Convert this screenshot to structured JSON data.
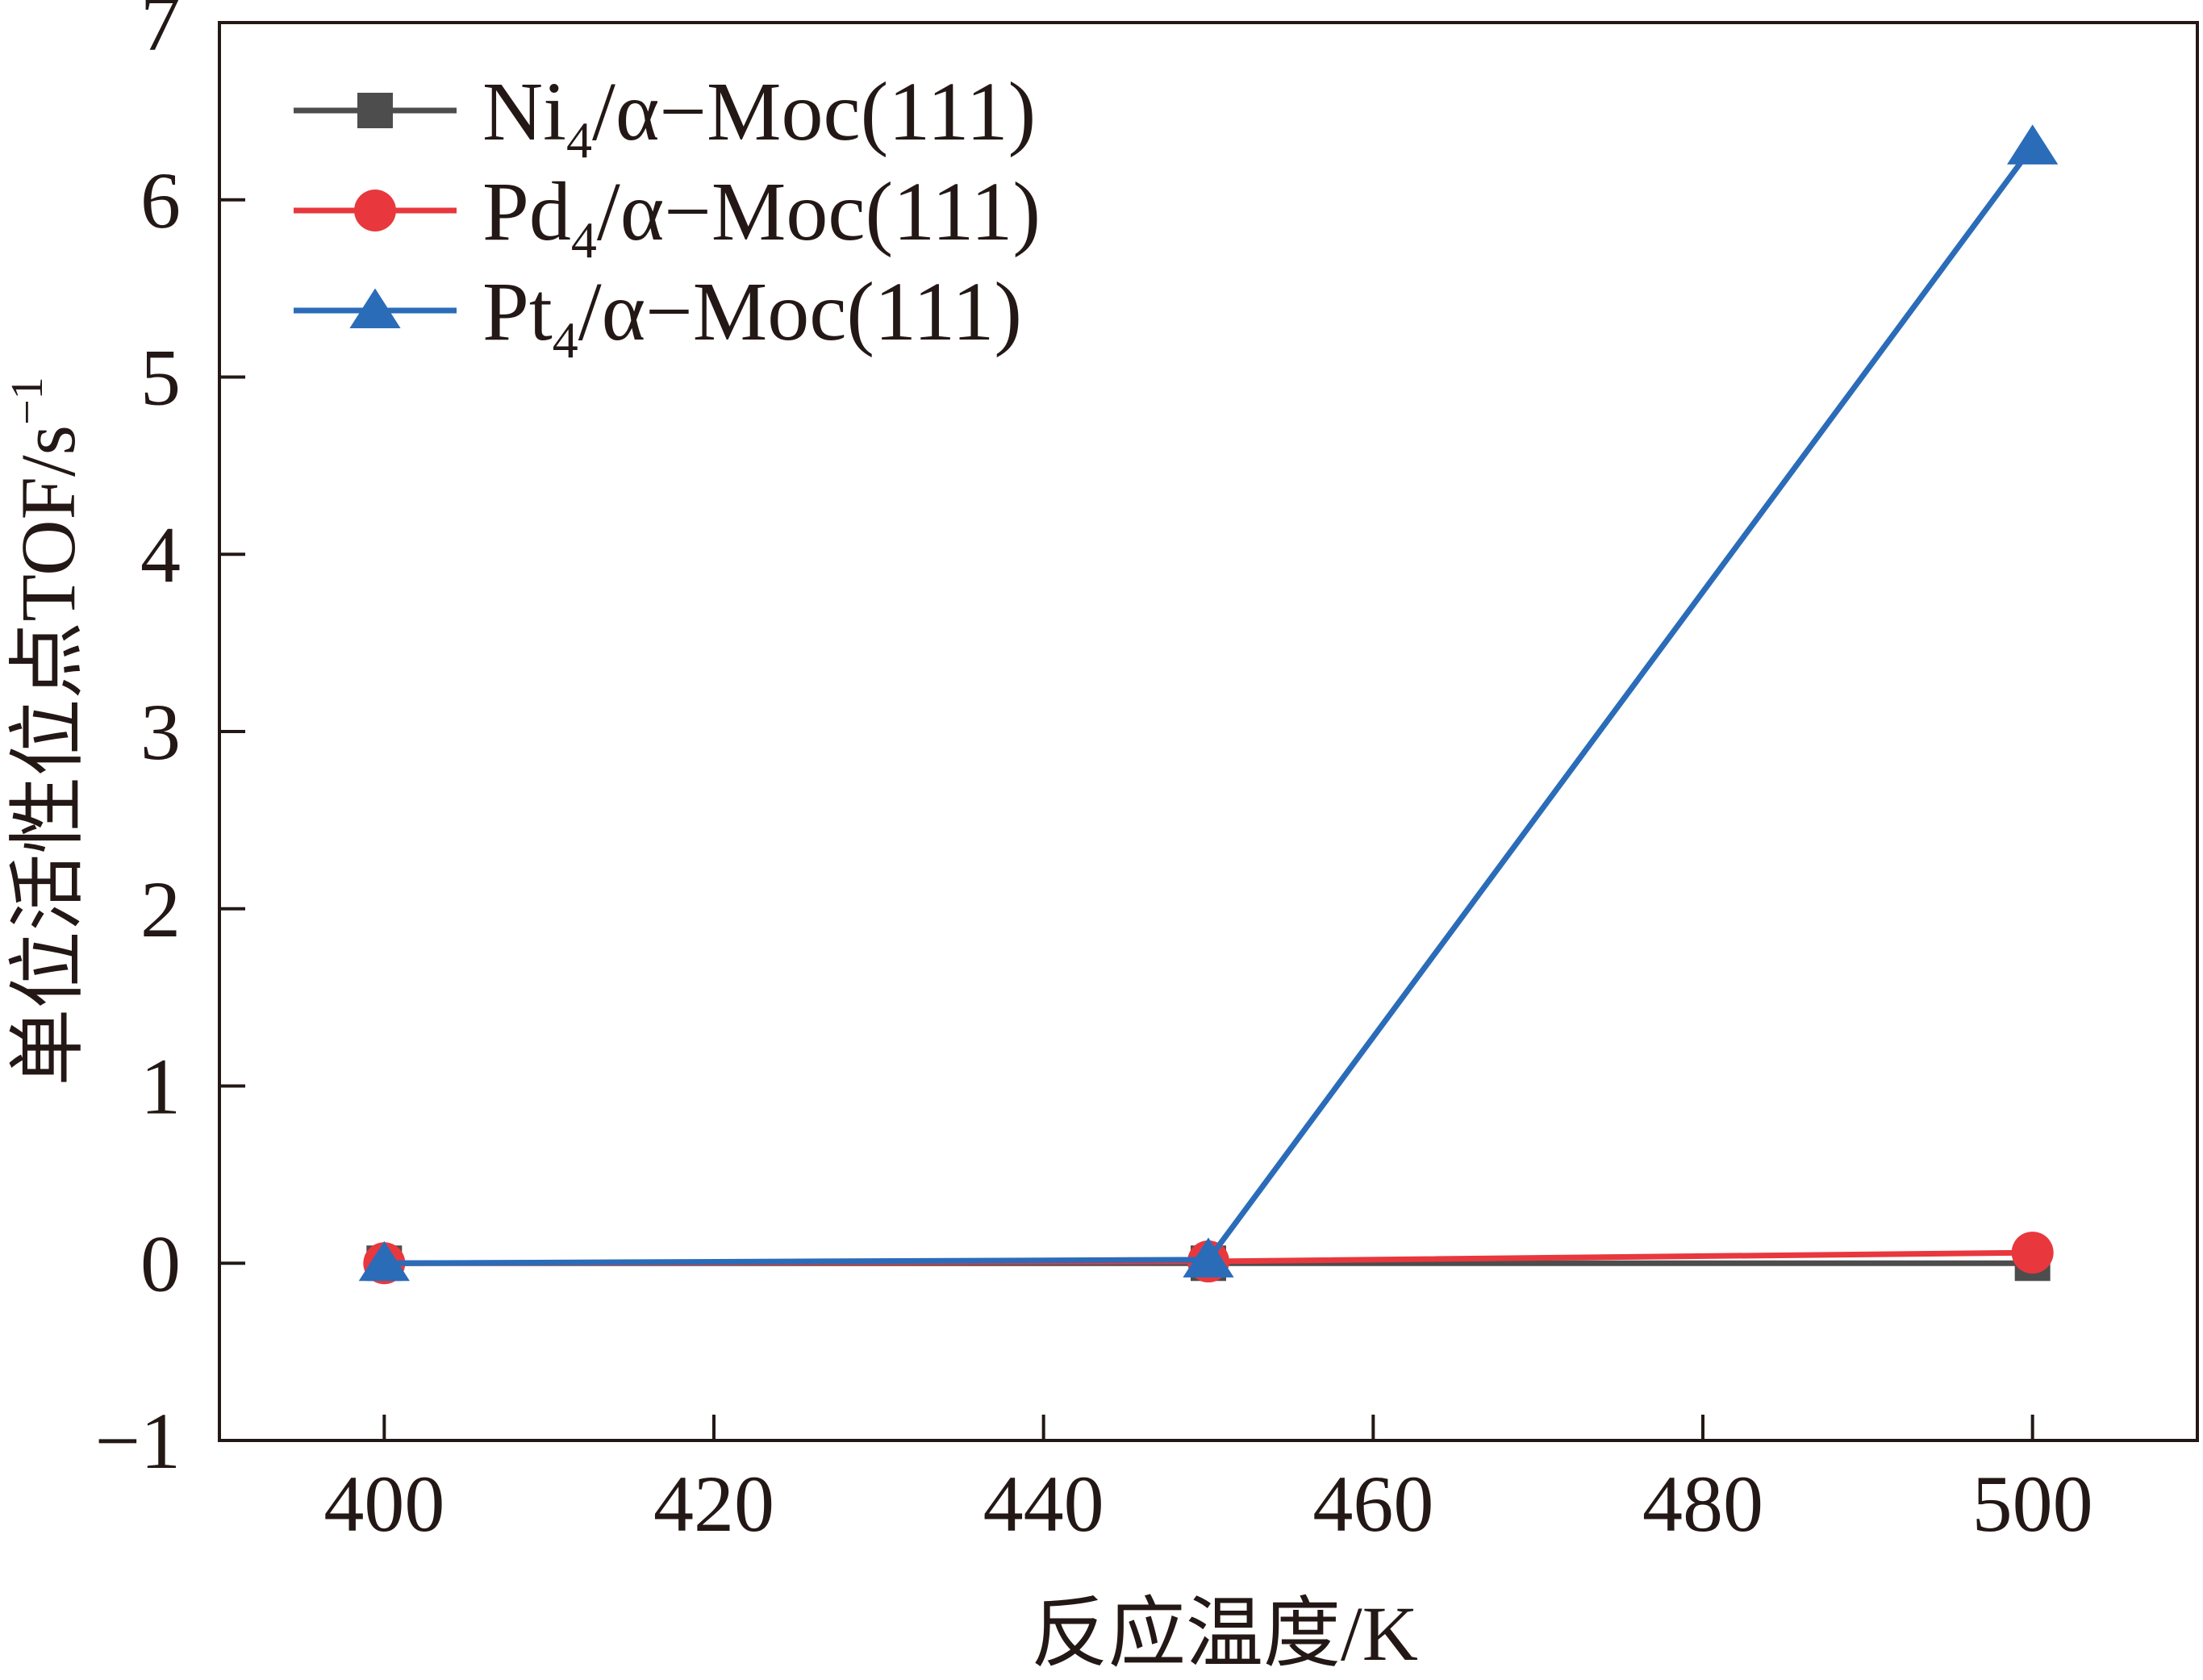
{
  "chart_data": {
    "type": "line",
    "xlabel": "反应温度/K",
    "ylabel": "单位活性位点TOF/s",
    "ylabel_sup": "−1",
    "xlim": [
      390,
      510
    ],
    "ylim": [
      -1,
      7
    ],
    "x_ticks": [
      400,
      420,
      440,
      460,
      480,
      500
    ],
    "x_tick_labels": [
      "400",
      "420",
      "440",
      "460",
      "480",
      "500"
    ],
    "y_ticks": [
      -1,
      0,
      1,
      2,
      3,
      4,
      5,
      6,
      7
    ],
    "y_tick_labels": [
      "−1",
      "0",
      "1",
      "2",
      "3",
      "4",
      "5",
      "6",
      "7"
    ],
    "grid": false,
    "legend_position": "top-left",
    "x": [
      400,
      450,
      500
    ],
    "series": [
      {
        "metal": "Ni",
        "sub": "4",
        "rest": "/α−Moc(111)",
        "color": "#4d4d4d",
        "marker": "square",
        "values": [
          0,
          0,
          0
        ]
      },
      {
        "metal": "Pd",
        "sub": "4",
        "rest": "/α−Moc(111)",
        "color": "#e8383d",
        "marker": "circle",
        "values": [
          0,
          0.01,
          0.06
        ]
      },
      {
        "metal": "Pt",
        "sub": "4",
        "rest": "/α−Moc(111)",
        "color": "#2b6cb9",
        "marker": "triangle",
        "values": [
          0,
          0.02,
          6.3
        ]
      }
    ]
  }
}
